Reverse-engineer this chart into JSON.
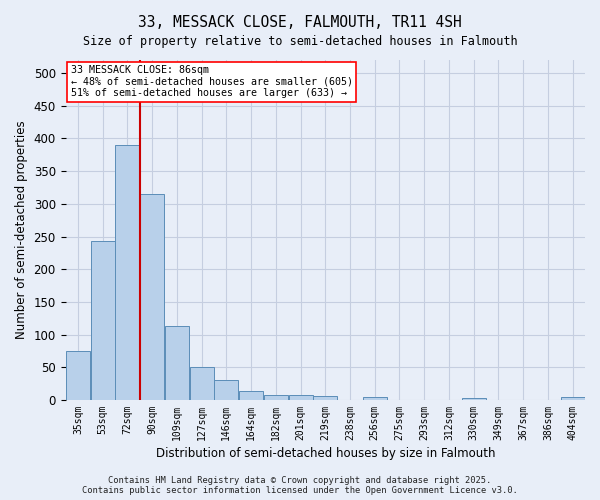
{
  "title1": "33, MESSACK CLOSE, FALMOUTH, TR11 4SH",
  "title2": "Size of property relative to semi-detached houses in Falmouth",
  "xlabel": "Distribution of semi-detached houses by size in Falmouth",
  "ylabel": "Number of semi-detached properties",
  "categories": [
    "35sqm",
    "53sqm",
    "72sqm",
    "90sqm",
    "109sqm",
    "127sqm",
    "146sqm",
    "164sqm",
    "182sqm",
    "201sqm",
    "219sqm",
    "238sqm",
    "256sqm",
    "275sqm",
    "293sqm",
    "312sqm",
    "330sqm",
    "349sqm",
    "367sqm",
    "386sqm",
    "404sqm"
  ],
  "values": [
    75,
    243,
    390,
    315,
    113,
    50,
    30,
    14,
    7,
    7,
    6,
    0,
    5,
    0,
    0,
    0,
    3,
    0,
    0,
    0,
    4
  ],
  "bar_color": "#b8d0ea",
  "bar_edge_color": "#5b8db8",
  "vline_color": "#cc0000",
  "annotation_text": "33 MESSACK CLOSE: 86sqm\n← 48% of semi-detached houses are smaller (605)\n51% of semi-detached houses are larger (633) →",
  "ylim": [
    0,
    520
  ],
  "yticks": [
    0,
    50,
    100,
    150,
    200,
    250,
    300,
    350,
    400,
    450,
    500
  ],
  "footer": "Contains HM Land Registry data © Crown copyright and database right 2025.\nContains public sector information licensed under the Open Government Licence v3.0.",
  "background_color": "#e8eef8",
  "grid_color": "#c5cee0"
}
